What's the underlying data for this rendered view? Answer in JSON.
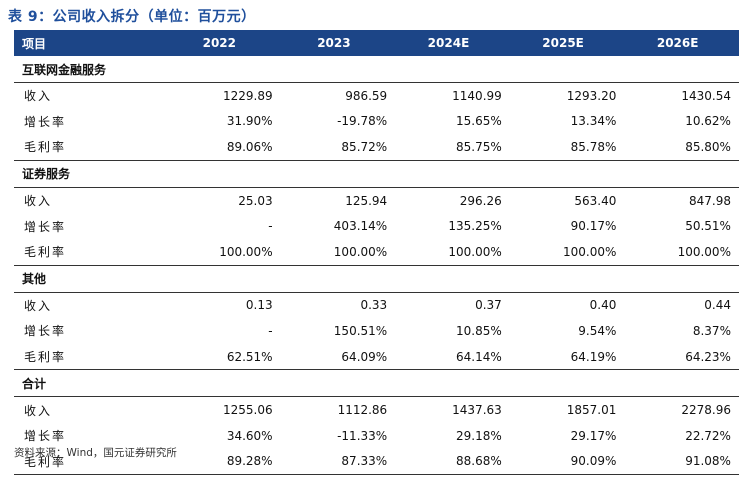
{
  "title": "表 9：公司收入拆分（单位：百万元）",
  "header": [
    "项目",
    "2022",
    "2023",
    "2024E",
    "2025E",
    "2026E"
  ],
  "sections": [
    {
      "name": "互联网金融服务",
      "rows": [
        {
          "label": "收入",
          "values": [
            "1229.89",
            "986.59",
            "1140.99",
            "1293.20",
            "1430.54"
          ]
        },
        {
          "label": "增长率",
          "values": [
            "31.90%",
            "-19.78%",
            "15.65%",
            "13.34%",
            "10.62%"
          ]
        },
        {
          "label": "毛利率",
          "values": [
            "89.06%",
            "85.72%",
            "85.75%",
            "85.78%",
            "85.80%"
          ]
        }
      ]
    },
    {
      "name": "证券服务",
      "rows": [
        {
          "label": "收入",
          "values": [
            "25.03",
            "125.94",
            "296.26",
            "563.40",
            "847.98"
          ]
        },
        {
          "label": "增长率",
          "values": [
            "-",
            "403.14%",
            "135.25%",
            "90.17%",
            "50.51%"
          ]
        },
        {
          "label": "毛利率",
          "values": [
            "100.00%",
            "100.00%",
            "100.00%",
            "100.00%",
            "100.00%"
          ]
        }
      ]
    },
    {
      "name": "其他",
      "rows": [
        {
          "label": "收入",
          "values": [
            "0.13",
            "0.33",
            "0.37",
            "0.40",
            "0.44"
          ]
        },
        {
          "label": "增长率",
          "values": [
            "-",
            "150.51%",
            "10.85%",
            "9.54%",
            "8.37%"
          ]
        },
        {
          "label": "毛利率",
          "values": [
            "62.51%",
            "64.09%",
            "64.14%",
            "64.19%",
            "64.23%"
          ]
        }
      ]
    },
    {
      "name": "合计",
      "rows": [
        {
          "label": "收入",
          "values": [
            "1255.06",
            "1112.86",
            "1437.63",
            "1857.01",
            "2278.96"
          ]
        },
        {
          "label": "增长率",
          "values": [
            "34.60%",
            "-11.33%",
            "29.18%",
            "29.17%",
            "22.72%"
          ]
        },
        {
          "label": "毛利率",
          "values": [
            "89.28%",
            "87.33%",
            "88.68%",
            "90.09%",
            "91.08%"
          ]
        }
      ]
    }
  ],
  "source": "资料来源：Wind，国元证券研究所"
}
